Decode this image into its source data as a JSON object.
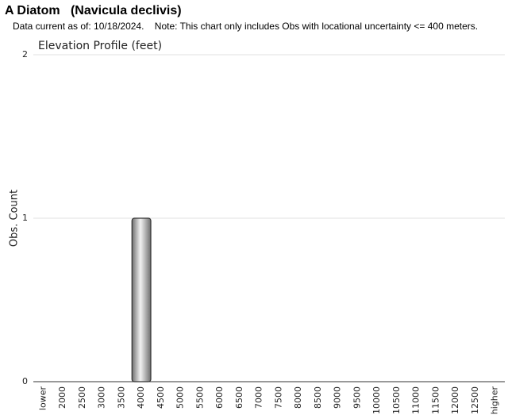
{
  "chart_data": {
    "type": "bar",
    "title": "A Diatom   (Navicula declivis)",
    "subtitle": "Data current as of: 10/18/2024.    Note: This chart only includes Obs with locational uncertainty <= 400 meters.",
    "chart_title": "Elevation Profile (feet)",
    "y_label": "Obs. Count",
    "categories": [
      "lower",
      "2000",
      "2500",
      "3000",
      "3500",
      "4000",
      "4500",
      "5000",
      "5500",
      "6000",
      "6500",
      "7000",
      "7500",
      "8000",
      "8500",
      "9000",
      "9500",
      "10000",
      "10500",
      "11000",
      "11500",
      "12000",
      "12500",
      "higher"
    ],
    "values": [
      0,
      0,
      0,
      0,
      0,
      1,
      0,
      0,
      0,
      0,
      0,
      0,
      0,
      0,
      0,
      0,
      0,
      0,
      0,
      0,
      0,
      0,
      0,
      0
    ],
    "color": "#a0a0a0",
    "ylim": [
      0,
      2
    ],
    "yticks": [
      0,
      1,
      2
    ],
    "grid": true
  }
}
